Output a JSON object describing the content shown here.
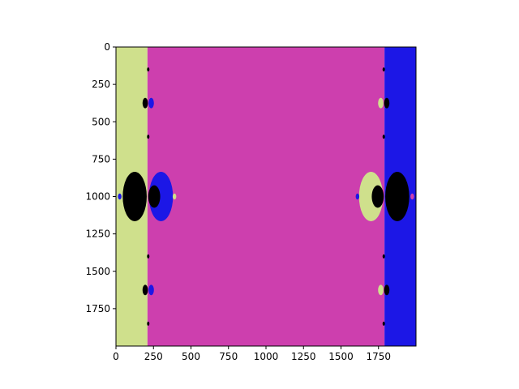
{
  "chart_data": {
    "type": "heatmap",
    "title": "",
    "xlabel": "",
    "ylabel": "",
    "xlim": [
      0,
      2000
    ],
    "ylim": [
      2000,
      0
    ],
    "x_ticks": [
      0,
      250,
      500,
      750,
      1000,
      1250,
      1500,
      1750
    ],
    "y_ticks": [
      0,
      250,
      500,
      750,
      1000,
      1250,
      1500,
      1750
    ],
    "x_tick_labels": [
      "0",
      "250",
      "500",
      "750",
      "1000",
      "1250",
      "1500",
      "1750"
    ],
    "y_tick_labels": [
      "0",
      "250",
      "500",
      "750",
      "1000",
      "1250",
      "1500",
      "1750"
    ],
    "grid": false,
    "colors": {
      "basin_a": "#cfe08c",
      "basin_b": "#cd3fae",
      "basin_c": "#1c17e6",
      "nonconvergent": "#000000"
    },
    "regions": [
      {
        "basin": "basin_a",
        "x_range": [
          0,
          210
        ],
        "y_range": [
          0,
          2000
        ]
      },
      {
        "basin": "basin_b",
        "x_range": [
          210,
          1790
        ],
        "y_range": [
          0,
          2000
        ]
      },
      {
        "basin": "basin_c",
        "x_range": [
          1790,
          2000
        ],
        "y_range": [
          0,
          2000
        ]
      }
    ],
    "features": [
      {
        "basin": "basin_c",
        "cx": 300,
        "cy": 1000,
        "rx": 80,
        "ry": 165
      },
      {
        "basin": "nonconvergent",
        "cx": 125,
        "cy": 1000,
        "rx": 80,
        "ry": 165
      },
      {
        "basin": "nonconvergent",
        "cx": 255,
        "cy": 1000,
        "rx": 40,
        "ry": 75
      },
      {
        "basin": "basin_a",
        "cx": 1700,
        "cy": 1000,
        "rx": 80,
        "ry": 165
      },
      {
        "basin": "nonconvergent",
        "cx": 1875,
        "cy": 1000,
        "rx": 80,
        "ry": 165
      },
      {
        "basin": "nonconvergent",
        "cx": 1745,
        "cy": 1000,
        "rx": 40,
        "ry": 75
      },
      {
        "basin": "nonconvergent",
        "cx": 195,
        "cy": 375,
        "rx": 18,
        "ry": 35
      },
      {
        "basin": "basin_c",
        "cx": 235,
        "cy": 375,
        "rx": 18,
        "ry": 35
      },
      {
        "basin": "nonconvergent",
        "cx": 195,
        "cy": 1625,
        "rx": 18,
        "ry": 35
      },
      {
        "basin": "basin_c",
        "cx": 235,
        "cy": 1625,
        "rx": 18,
        "ry": 35
      },
      {
        "basin": "basin_a",
        "cx": 1765,
        "cy": 375,
        "rx": 18,
        "ry": 35
      },
      {
        "basin": "nonconvergent",
        "cx": 1805,
        "cy": 375,
        "rx": 18,
        "ry": 35
      },
      {
        "basin": "basin_a",
        "cx": 1765,
        "cy": 1625,
        "rx": 18,
        "ry": 35
      },
      {
        "basin": "nonconvergent",
        "cx": 1805,
        "cy": 1625,
        "rx": 18,
        "ry": 35
      },
      {
        "basin": "nonconvergent",
        "cx": 215,
        "cy": 150,
        "rx": 8,
        "ry": 14
      },
      {
        "basin": "nonconvergent",
        "cx": 215,
        "cy": 600,
        "rx": 8,
        "ry": 14
      },
      {
        "basin": "nonconvergent",
        "cx": 215,
        "cy": 1400,
        "rx": 8,
        "ry": 14
      },
      {
        "basin": "nonconvergent",
        "cx": 215,
        "cy": 1850,
        "rx": 8,
        "ry": 14
      },
      {
        "basin": "nonconvergent",
        "cx": 1785,
        "cy": 150,
        "rx": 8,
        "ry": 14
      },
      {
        "basin": "nonconvergent",
        "cx": 1785,
        "cy": 600,
        "rx": 8,
        "ry": 14
      },
      {
        "basin": "nonconvergent",
        "cx": 1785,
        "cy": 1400,
        "rx": 8,
        "ry": 14
      },
      {
        "basin": "nonconvergent",
        "cx": 1785,
        "cy": 1850,
        "rx": 8,
        "ry": 14
      },
      {
        "basin": "basin_c",
        "cx": 25,
        "cy": 1000,
        "rx": 12,
        "ry": 20
      },
      {
        "basin": "basin_a",
        "cx": 390,
        "cy": 1000,
        "rx": 12,
        "ry": 20
      },
      {
        "basin": "basin_c",
        "cx": 1610,
        "cy": 1000,
        "rx": 12,
        "ry": 20
      },
      {
        "basin": "basin_b",
        "cx": 1975,
        "cy": 1000,
        "rx": 12,
        "ry": 20
      }
    ]
  }
}
